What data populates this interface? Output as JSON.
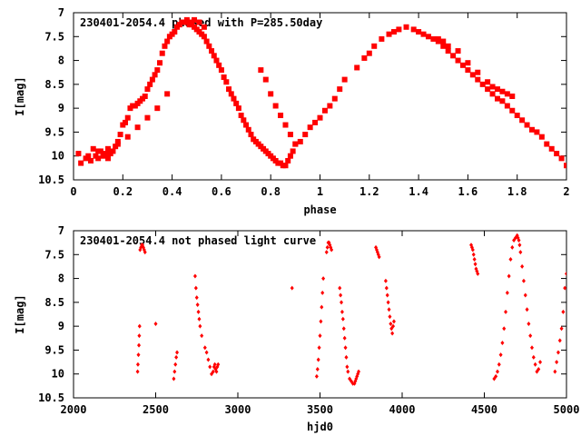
{
  "colors": {
    "points": "#ff0000",
    "axes": "#000000",
    "background": "#ffffff"
  },
  "chart_data": [
    {
      "type": "scatter",
      "title": "230401-2054.4 phased with P=285.50day",
      "xlabel": "phase",
      "ylabel": "I[mag]",
      "xlim": [
        0,
        2
      ],
      "ylim": [
        10.5,
        7
      ],
      "y_inverted": true,
      "xticks": [
        "0",
        "0.2",
        "0.4",
        "0.6",
        "0.8",
        "1",
        "1.2",
        "1.4",
        "1.6",
        "1.8",
        "2"
      ],
      "yticks": [
        "7",
        "7.5",
        "8",
        "8.5",
        "9",
        "9.5",
        "10",
        "10.5"
      ],
      "xtick_values": [
        0,
        0.2,
        0.4,
        0.6,
        0.8,
        1,
        1.2,
        1.4,
        1.6,
        1.8,
        2
      ],
      "ytick_values": [
        7,
        7.5,
        8,
        8.5,
        9,
        9.5,
        10,
        10.5
      ],
      "grid": false,
      "marker": "filled-square",
      "series": [
        {
          "x": [
            0.02,
            0.03,
            0.05,
            0.06,
            0.07,
            0.08,
            0.09,
            0.1,
            0.11,
            0.12,
            0.13,
            0.14,
            0.15,
            0.16,
            0.17,
            0.18,
            0.19,
            0.2,
            0.21,
            0.22,
            0.23,
            0.24,
            0.25,
            0.26,
            0.27,
            0.28,
            0.29,
            0.3,
            0.31,
            0.32,
            0.33,
            0.34,
            0.35,
            0.36,
            0.37,
            0.38,
            0.39,
            0.4,
            0.41,
            0.42,
            0.43,
            0.44,
            0.45,
            0.46,
            0.47,
            0.48,
            0.49,
            0.5,
            0.51,
            0.52,
            0.53,
            0.54,
            0.55,
            0.56,
            0.57,
            0.58,
            0.59,
            0.6,
            0.61,
            0.62,
            0.63,
            0.64,
            0.65,
            0.66,
            0.67,
            0.68,
            0.69,
            0.7,
            0.71,
            0.72,
            0.73,
            0.74,
            0.75,
            0.76,
            0.77,
            0.78,
            0.79,
            0.8,
            0.81,
            0.82,
            0.83,
            0.84,
            0.85,
            0.86,
            0.87,
            0.88,
            0.89,
            0.9,
            0.92,
            0.94,
            0.96,
            0.98,
            1.0,
            1.02,
            1.04,
            1.06,
            1.08,
            1.1,
            1.15,
            1.18,
            1.2,
            1.22,
            1.25,
            1.28,
            1.3,
            1.32,
            1.35,
            1.38,
            1.4,
            1.42,
            1.44,
            1.46,
            1.48,
            1.5,
            1.52,
            1.54,
            1.56,
            1.58,
            1.6,
            1.62,
            1.64,
            1.66,
            1.68,
            1.7,
            1.72,
            1.74,
            1.76,
            1.78,
            1.8,
            1.82,
            1.84,
            1.86,
            1.88,
            1.9,
            1.92,
            1.94,
            1.96,
            1.98,
            2.0,
            0.47,
            0.49,
            0.51,
            0.53,
            0.76,
            0.78,
            0.8,
            0.82,
            0.84,
            0.86,
            0.88,
            0.9,
            0.1,
            0.14,
            0.18,
            0.22,
            0.26,
            0.3,
            0.34,
            0.38,
            1.48,
            1.5,
            1.52,
            1.56,
            1.6,
            1.64,
            1.68,
            1.7,
            1.72,
            1.74,
            1.76,
            1.78
          ],
          "y": [
            9.95,
            10.15,
            10.05,
            10.0,
            10.1,
            9.85,
            10.0,
            10.05,
            9.9,
            10.0,
            9.95,
            10.05,
            9.95,
            9.9,
            9.8,
            9.7,
            9.55,
            9.35,
            9.3,
            9.2,
            9.0,
            8.95,
            8.95,
            8.9,
            8.85,
            8.8,
            8.75,
            8.6,
            8.5,
            8.4,
            8.3,
            8.2,
            8.05,
            7.85,
            7.7,
            7.6,
            7.5,
            7.45,
            7.4,
            7.3,
            7.25,
            7.2,
            7.2,
            7.15,
            7.2,
            7.25,
            7.3,
            7.35,
            7.4,
            7.45,
            7.5,
            7.6,
            7.7,
            7.8,
            7.9,
            8.0,
            8.1,
            8.2,
            8.35,
            8.45,
            8.6,
            8.7,
            8.8,
            8.9,
            9.0,
            9.15,
            9.25,
            9.35,
            9.45,
            9.55,
            9.65,
            9.7,
            9.75,
            9.8,
            9.85,
            9.9,
            9.95,
            10.0,
            10.05,
            10.1,
            10.15,
            10.15,
            10.2,
            10.2,
            10.1,
            10.0,
            9.9,
            9.75,
            9.7,
            9.55,
            9.4,
            9.3,
            9.2,
            9.05,
            8.95,
            8.8,
            8.6,
            8.4,
            8.15,
            7.95,
            7.85,
            7.7,
            7.55,
            7.45,
            7.4,
            7.35,
            7.3,
            7.35,
            7.4,
            7.45,
            7.5,
            7.55,
            7.6,
            7.7,
            7.8,
            7.9,
            8.0,
            8.1,
            8.2,
            8.3,
            8.4,
            8.5,
            8.6,
            8.7,
            8.8,
            8.85,
            8.95,
            9.05,
            9.15,
            9.25,
            9.35,
            9.45,
            9.5,
            9.6,
            9.75,
            9.85,
            9.95,
            10.05,
            10.2,
            7.25,
            7.15,
            7.2,
            7.3,
            8.2,
            8.4,
            8.7,
            8.95,
            9.15,
            9.35,
            9.55,
            9.75,
            9.9,
            9.85,
            9.75,
            9.6,
            9.4,
            9.2,
            9.0,
            8.7,
            7.55,
            7.6,
            7.7,
            7.8,
            8.05,
            8.25,
            8.45,
            8.55,
            8.6,
            8.65,
            8.7,
            8.75
          ]
        }
      ]
    },
    {
      "type": "scatter",
      "title": "230401-2054.4 not phased light curve",
      "xlabel": "hjd0",
      "ylabel": "I[mag]",
      "xlim": [
        2000,
        5000
      ],
      "ylim": [
        10.5,
        7
      ],
      "y_inverted": true,
      "xticks": [
        "2000",
        "2500",
        "3000",
        "3500",
        "4000",
        "4500",
        "5000"
      ],
      "yticks": [
        "7",
        "7.5",
        "8",
        "8.5",
        "9",
        "9.5",
        "10",
        "10.5"
      ],
      "xtick_values": [
        2000,
        2500,
        3000,
        3500,
        4000,
        4500,
        5000
      ],
      "ytick_values": [
        7,
        7.5,
        8,
        8.5,
        9,
        9.5,
        10,
        10.5
      ],
      "grid": false,
      "marker": "small-diamond",
      "series": [
        {
          "x": [
            2390,
            2392,
            2395,
            2398,
            2400,
            2402,
            2405,
            2410,
            2415,
            2420,
            2425,
            2430,
            2435,
            2500,
            2610,
            2615,
            2620,
            2625,
            2630,
            2740,
            2745,
            2750,
            2755,
            2760,
            2765,
            2770,
            2780,
            2800,
            2810,
            2820,
            2830,
            2840,
            2850,
            2855,
            2860,
            2865,
            2870,
            2875,
            2880,
            3330,
            3480,
            3485,
            3490,
            3495,
            3500,
            3505,
            3510,
            3515,
            3520,
            3540,
            3545,
            3550,
            3555,
            3560,
            3565,
            3570,
            3620,
            3625,
            3630,
            3635,
            3640,
            3645,
            3650,
            3655,
            3660,
            3665,
            3670,
            3680,
            3690,
            3700,
            3710,
            3715,
            3720,
            3725,
            3730,
            3735,
            3840,
            3845,
            3850,
            3855,
            3860,
            3900,
            3905,
            3910,
            3915,
            3920,
            3925,
            3930,
            3935,
            3940,
            3945,
            3950,
            4420,
            4425,
            4430,
            4435,
            4440,
            4445,
            4450,
            4455,
            4460,
            4560,
            4570,
            4580,
            4590,
            4600,
            4610,
            4620,
            4630,
            4640,
            4650,
            4660,
            4670,
            4680,
            4690,
            4700,
            4705,
            4710,
            4715,
            4720,
            4730,
            4740,
            4750,
            4760,
            4770,
            4780,
            4790,
            4800,
            4810,
            4820,
            4830,
            4840,
            4930,
            4940,
            4950,
            4960,
            4970,
            4980,
            4990,
            5000
          ],
          "y": [
            9.95,
            9.8,
            9.6,
            9.4,
            9.2,
            9.0,
            7.4,
            7.35,
            7.3,
            7.3,
            7.35,
            7.4,
            7.45,
            8.95,
            10.1,
            9.95,
            9.8,
            9.65,
            9.55,
            7.95,
            8.2,
            8.4,
            8.55,
            8.7,
            8.85,
            9.0,
            9.2,
            9.45,
            9.55,
            9.7,
            9.85,
            10.0,
            9.95,
            9.85,
            9.8,
            9.9,
            9.95,
            9.85,
            9.8,
            8.2,
            10.05,
            9.9,
            9.7,
            9.45,
            9.2,
            8.9,
            8.6,
            8.3,
            8.0,
            7.45,
            7.35,
            7.25,
            7.25,
            7.3,
            7.35,
            7.4,
            8.2,
            8.35,
            8.5,
            8.7,
            8.85,
            9.05,
            9.25,
            9.45,
            9.65,
            9.85,
            9.95,
            10.1,
            10.15,
            10.2,
            10.2,
            10.15,
            10.1,
            10.05,
            10.0,
            9.95,
            7.35,
            7.4,
            7.45,
            7.5,
            7.55,
            8.05,
            8.2,
            8.35,
            8.5,
            8.65,
            8.8,
            8.95,
            9.05,
            9.15,
            9.0,
            8.9,
            7.3,
            7.35,
            7.4,
            7.5,
            7.6,
            7.7,
            7.8,
            7.85,
            7.9,
            10.1,
            10.05,
            9.95,
            9.8,
            9.6,
            9.35,
            9.05,
            8.7,
            8.3,
            7.95,
            7.6,
            7.35,
            7.2,
            7.15,
            7.1,
            7.15,
            7.2,
            7.3,
            7.45,
            7.75,
            8.05,
            8.35,
            8.65,
            8.95,
            9.2,
            9.45,
            9.65,
            9.8,
            9.95,
            9.9,
            9.75,
            9.95,
            9.75,
            9.55,
            9.3,
            9.05,
            8.7,
            8.2,
            7.9
          ]
        }
      ]
    }
  ]
}
